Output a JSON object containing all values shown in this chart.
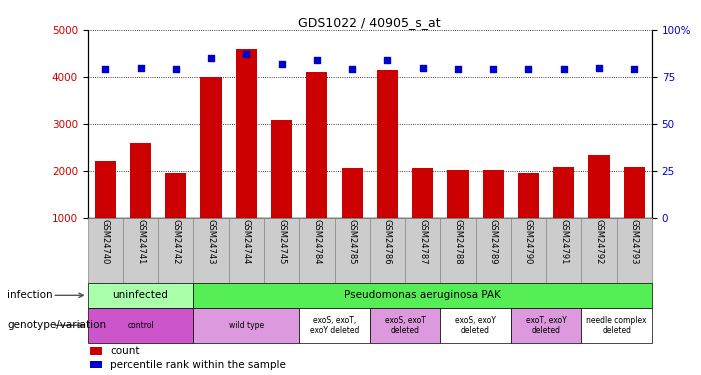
{
  "title": "GDS1022 / 40905_s_at",
  "samples": [
    "GSM24740",
    "GSM24741",
    "GSM24742",
    "GSM24743",
    "GSM24744",
    "GSM24745",
    "GSM24784",
    "GSM24785",
    "GSM24786",
    "GSM24787",
    "GSM24788",
    "GSM24789",
    "GSM24790",
    "GSM24791",
    "GSM24792",
    "GSM24793"
  ],
  "counts": [
    2200,
    2600,
    1950,
    4000,
    4600,
    3080,
    4100,
    2050,
    4150,
    2050,
    2020,
    2020,
    1950,
    2080,
    2330,
    2080
  ],
  "percentile_ranks": [
    79,
    80,
    79,
    85,
    87,
    82,
    84,
    79,
    84,
    80,
    79,
    79,
    79,
    79,
    80,
    79
  ],
  "ylim_left": [
    1000,
    5000
  ],
  "ylim_right": [
    0,
    100
  ],
  "yticks_left": [
    1000,
    2000,
    3000,
    4000,
    5000
  ],
  "yticks_right": [
    0,
    25,
    50,
    75,
    100
  ],
  "bar_color": "#cc0000",
  "dot_color": "#0000cc",
  "background_color": "#ffffff",
  "infection_row": {
    "label": "infection",
    "groups": [
      {
        "text": "uninfected",
        "start": 0,
        "end": 3,
        "color": "#aaffaa"
      },
      {
        "text": "Pseudomonas aeruginosa PAK",
        "start": 3,
        "end": 16,
        "color": "#55ee55"
      }
    ]
  },
  "genotype_row": {
    "label": "genotype/variation",
    "groups": [
      {
        "text": "control",
        "start": 0,
        "end": 3,
        "color": "#cc55cc"
      },
      {
        "text": "wild type",
        "start": 3,
        "end": 6,
        "color": "#dd99dd"
      },
      {
        "text": "exoS, exoT,\nexoY deleted",
        "start": 6,
        "end": 8,
        "color": "#ffffff"
      },
      {
        "text": "exoS, exoT\ndeleted",
        "start": 8,
        "end": 10,
        "color": "#dd99dd"
      },
      {
        "text": "exoS, exoY\ndeleted",
        "start": 10,
        "end": 12,
        "color": "#ffffff"
      },
      {
        "text": "exoT, exoY\ndeleted",
        "start": 12,
        "end": 14,
        "color": "#dd99dd"
      },
      {
        "text": "needle complex\ndeleted",
        "start": 14,
        "end": 16,
        "color": "#ffffff"
      }
    ]
  },
  "legend": [
    {
      "label": "count",
      "color": "#cc0000"
    },
    {
      "label": "percentile rank within the sample",
      "color": "#0000cc"
    }
  ],
  "sample_label_bg": "#cccccc",
  "sample_label_edge": "#888888"
}
